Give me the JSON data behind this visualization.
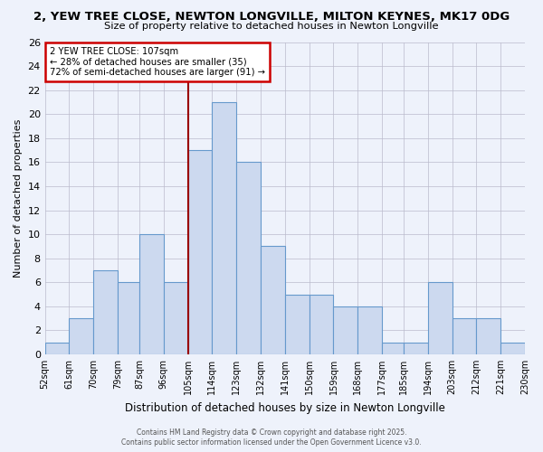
{
  "title": "2, YEW TREE CLOSE, NEWTON LONGVILLE, MILTON KEYNES, MK17 0DG",
  "subtitle": "Size of property relative to detached houses in Newton Longville",
  "xlabel": "Distribution of detached houses by size in Newton Longville",
  "ylabel": "Number of detached properties",
  "bins": [
    52,
    61,
    70,
    79,
    87,
    96,
    105,
    114,
    123,
    132,
    141,
    150,
    159,
    168,
    177,
    185,
    194,
    203,
    212,
    221,
    230
  ],
  "counts": [
    1,
    3,
    7,
    6,
    10,
    6,
    17,
    21,
    16,
    9,
    5,
    5,
    4,
    4,
    1,
    1,
    6,
    3,
    3,
    1
  ],
  "tick_labels": [
    "52sqm",
    "61sqm",
    "70sqm",
    "79sqm",
    "87sqm",
    "96sqm",
    "105sqm",
    "114sqm",
    "123sqm",
    "132sqm",
    "141sqm",
    "150sqm",
    "159sqm",
    "168sqm",
    "177sqm",
    "185sqm",
    "194sqm",
    "203sqm",
    "212sqm",
    "221sqm",
    "230sqm"
  ],
  "bar_color": "#ccd9ef",
  "bar_edge_color": "#6699cc",
  "grid_color": "#bbbbcc",
  "background_color": "#eef2fb",
  "vline_x": 105,
  "vline_color": "#990000",
  "annotation_title": "2 YEW TREE CLOSE: 107sqm",
  "annotation_line1": "← 28% of detached houses are smaller (35)",
  "annotation_line2": "72% of semi-detached houses are larger (91) →",
  "annotation_box_color": "#ffffff",
  "annotation_box_edge": "#cc0000",
  "footer1": "Contains HM Land Registry data © Crown copyright and database right 2025.",
  "footer2": "Contains public sector information licensed under the Open Government Licence v3.0.",
  "ylim": [
    0,
    26
  ],
  "yticks": [
    0,
    2,
    4,
    6,
    8,
    10,
    12,
    14,
    16,
    18,
    20,
    22,
    24,
    26
  ]
}
